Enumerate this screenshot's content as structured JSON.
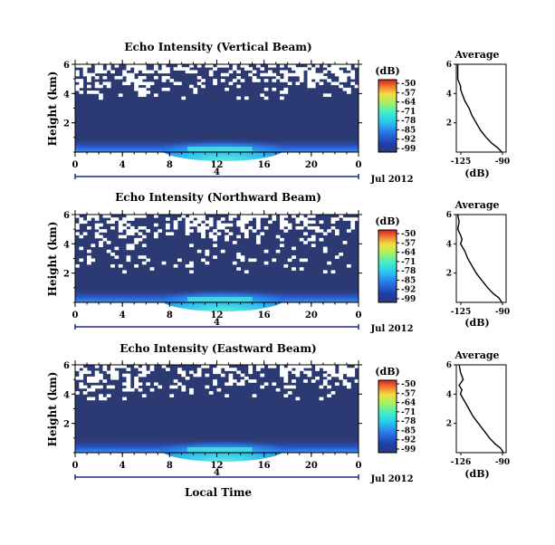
{
  "chart_data": [
    {
      "type": "heatmap",
      "title": "Echo Intensity (Vertical Beam)",
      "ylabel": "Height (km)",
      "x_ticks": [
        "0",
        "4",
        "8",
        "12",
        "16",
        "20",
        "0"
      ],
      "y_ticks": [
        "6",
        "4",
        "2"
      ],
      "xlim": [
        0,
        24
      ],
      "ylim": [
        0,
        6
      ],
      "date_label": "Jul 2012",
      "day_marker": "4",
      "colorbar": {
        "unit": "(dB)",
        "ticks": [
          "-50",
          "-57",
          "-64",
          "-71",
          "-78",
          "-85",
          "-92",
          "-99"
        ]
      },
      "profile": {
        "title": "Average",
        "xlabel": "(dB)",
        "x_ticks": [
          "-125",
          "-90"
        ],
        "y_ticks": [
          "6",
          "4",
          "2"
        ],
        "xlim": [
          -125,
          -90
        ],
        "ylim": [
          0,
          6
        ],
        "x": [
          -124,
          -124,
          -124,
          -122,
          -122,
          -121,
          -119,
          -116,
          -114,
          -111,
          -108,
          -104,
          -100,
          -96,
          -93
        ],
        "y": [
          6.0,
          5.5,
          5.0,
          4.5,
          4.3,
          4.0,
          3.5,
          3.0,
          2.5,
          2.0,
          1.5,
          1.0,
          0.6,
          0.3,
          0.0
        ]
      }
    },
    {
      "type": "heatmap",
      "title": "Echo Intensity (Northward Beam)",
      "ylabel": "Height (km)",
      "x_ticks": [
        "0",
        "4",
        "8",
        "12",
        "16",
        "20",
        "0"
      ],
      "y_ticks": [
        "6",
        "4",
        "2"
      ],
      "xlim": [
        0,
        24
      ],
      "ylim": [
        0,
        6
      ],
      "date_label": "Jul 2012",
      "day_marker": "4",
      "colorbar": {
        "unit": "(dB)",
        "ticks": [
          "-50",
          "-57",
          "-64",
          "-71",
          "-78",
          "-85",
          "-92",
          "-99"
        ]
      },
      "profile": {
        "title": "Average",
        "xlabel": "(dB)",
        "x_ticks": [
          "-125",
          "-90"
        ],
        "y_ticks": [
          "6",
          "4",
          "2"
        ],
        "xlim": [
          -125,
          -90
        ],
        "ylim": [
          0,
          6
        ],
        "x": [
          -124,
          -123,
          -124,
          -122,
          -121,
          -122,
          -119,
          -117,
          -114,
          -111,
          -107,
          -103,
          -99,
          -95,
          -93
        ],
        "y": [
          6.0,
          5.5,
          5.0,
          4.6,
          4.3,
          4.0,
          3.5,
          3.0,
          2.5,
          2.0,
          1.5,
          1.0,
          0.6,
          0.3,
          0.0
        ]
      }
    },
    {
      "type": "heatmap",
      "title": "Echo Intensity (Eastward Beam)",
      "ylabel": "Height (km)",
      "x_ticks": [
        "0",
        "4",
        "8",
        "12",
        "16",
        "20",
        "0"
      ],
      "y_ticks": [
        "6",
        "4",
        "2"
      ],
      "xlim": [
        0,
        24
      ],
      "ylim": [
        0,
        6
      ],
      "date_label": "Jul 2012",
      "day_marker": "4",
      "colorbar": {
        "unit": "(dB)",
        "ticks": [
          "-50",
          "-57",
          "-64",
          "-71",
          "-78",
          "-85",
          "-92",
          "-99"
        ]
      },
      "profile": {
        "title": "Average",
        "xlabel": "(dB)",
        "x_ticks": [
          "-126",
          "-90"
        ],
        "y_ticks": [
          "6",
          "4",
          "2"
        ],
        "xlim": [
          -126,
          -90
        ],
        "ylim": [
          0,
          6
        ],
        "x": [
          -124,
          -123,
          -121,
          -124,
          -122,
          -123,
          -120,
          -117,
          -114,
          -110,
          -106,
          -102,
          -98,
          -94,
          -92
        ],
        "y": [
          6.0,
          5.5,
          5.0,
          4.6,
          4.3,
          4.0,
          3.5,
          3.0,
          2.5,
          2.0,
          1.5,
          1.0,
          0.6,
          0.3,
          0.0
        ]
      }
    }
  ],
  "footer": {
    "xlabel": "Local Time"
  },
  "colors": {
    "background_echo": "#2c3a73",
    "gap": "#ffffff",
    "colormap": [
      "#1b2a8a",
      "#1f4fc8",
      "#2a8ef0",
      "#2fd0f0",
      "#4cf0c0",
      "#a8f060",
      "#f0e040",
      "#f08030",
      "#d82020"
    ],
    "day_bar": "#1e2a8c"
  }
}
